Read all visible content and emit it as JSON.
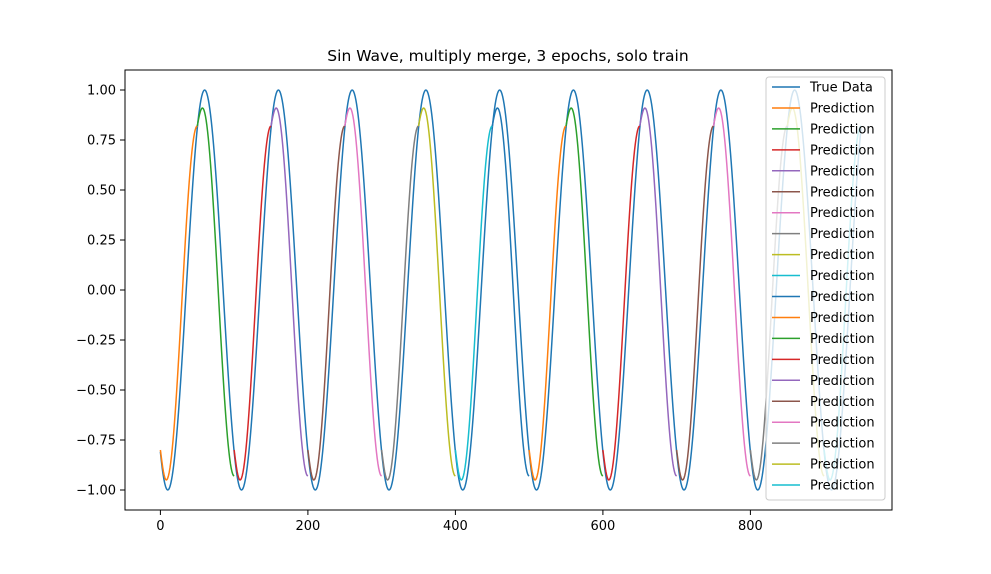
{
  "chart_data": {
    "type": "line",
    "title": "Sin Wave, multiply merge, 3 epochs, solo train",
    "xlabel": "",
    "ylabel": "",
    "xlim": [
      -48,
      992
    ],
    "ylim": [
      -1.1,
      1.1
    ],
    "x_ticks": [
      0,
      200,
      400,
      600,
      800
    ],
    "y_ticks": [
      -1.0,
      -0.75,
      -0.5,
      -0.25,
      0.0,
      0.25,
      0.5,
      0.75,
      1.0
    ],
    "x_tick_labels": [
      "0",
      "200",
      "400",
      "600",
      "800"
    ],
    "y_tick_labels": [
      "−1.00",
      "−0.75",
      "−0.50",
      "−0.25",
      "0.00",
      "0.25",
      "0.50",
      "0.75",
      "1.00"
    ],
    "legend_placement": "top-right",
    "true_data": {
      "name": "True Data",
      "color": "#1f77b4",
      "x_start": 0,
      "x_end": 950,
      "period": 100,
      "peak_x": 60,
      "amplitude": 1.0
    },
    "predictions": {
      "segment_length": 50,
      "segments": [
        {
          "name": "Prediction",
          "color": "#ff7f0e",
          "x_start": 0,
          "kind": "rise"
        },
        {
          "name": "Prediction",
          "color": "#2ca02c",
          "x_start": 50,
          "kind": "fall"
        },
        {
          "name": "Prediction",
          "color": "#d62728",
          "x_start": 100,
          "kind": "rise"
        },
        {
          "name": "Prediction",
          "color": "#9467bd",
          "x_start": 150,
          "kind": "fall"
        },
        {
          "name": "Prediction",
          "color": "#8c564b",
          "x_start": 200,
          "kind": "rise"
        },
        {
          "name": "Prediction",
          "color": "#e377c2",
          "x_start": 250,
          "kind": "fall"
        },
        {
          "name": "Prediction",
          "color": "#7f7f7f",
          "x_start": 300,
          "kind": "rise"
        },
        {
          "name": "Prediction",
          "color": "#bcbd22",
          "x_start": 350,
          "kind": "fall"
        },
        {
          "name": "Prediction",
          "color": "#17becf",
          "x_start": 400,
          "kind": "rise"
        },
        {
          "name": "Prediction",
          "color": "#1f77b4",
          "x_start": 450,
          "kind": "fall"
        },
        {
          "name": "Prediction",
          "color": "#ff7f0e",
          "x_start": 500,
          "kind": "rise"
        },
        {
          "name": "Prediction",
          "color": "#2ca02c",
          "x_start": 550,
          "kind": "fall"
        },
        {
          "name": "Prediction",
          "color": "#d62728",
          "x_start": 600,
          "kind": "rise"
        },
        {
          "name": "Prediction",
          "color": "#9467bd",
          "x_start": 650,
          "kind": "fall"
        },
        {
          "name": "Prediction",
          "color": "#8c564b",
          "x_start": 700,
          "kind": "rise"
        },
        {
          "name": "Prediction",
          "color": "#e377c2",
          "x_start": 750,
          "kind": "fall"
        },
        {
          "name": "Prediction",
          "color": "#7f7f7f",
          "x_start": 800,
          "kind": "rise"
        },
        {
          "name": "Prediction",
          "color": "#bcbd22",
          "x_start": 850,
          "kind": "fall"
        },
        {
          "name": "Prediction",
          "color": "#17becf",
          "x_start": 900,
          "kind": "rise"
        }
      ],
      "rise": {
        "y_start": -0.8,
        "y_min": -0.95,
        "y_max": 0.82
      },
      "fall": {
        "y_start": 0.82,
        "y_max": 0.91,
        "y_end": -0.93
      }
    }
  }
}
